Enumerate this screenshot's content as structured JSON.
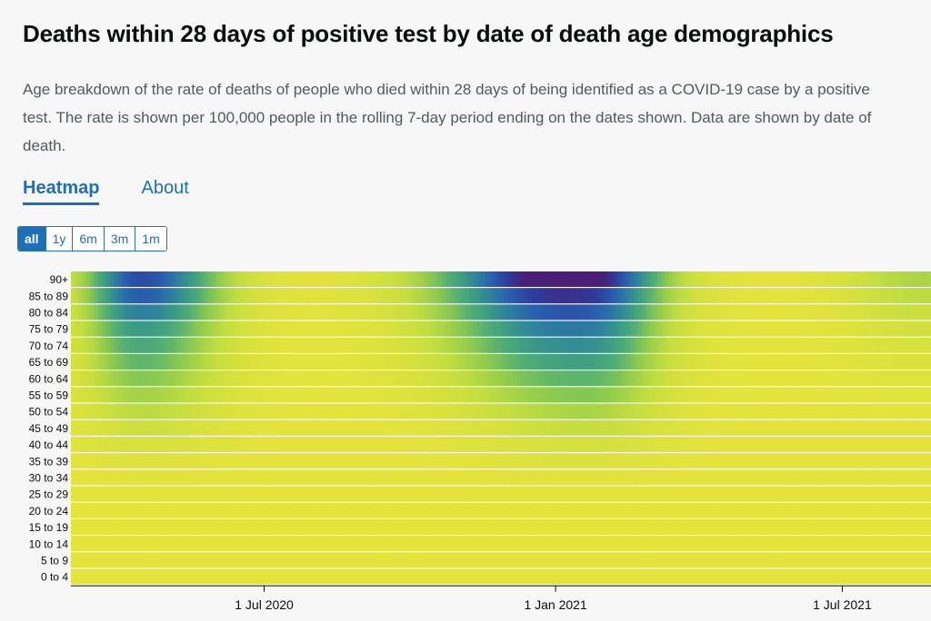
{
  "header": {
    "title": "Deaths within 28 days of positive test by date of death age demographics",
    "description": "Age breakdown of the rate of deaths of people who died within 28 days of being identified as a COVID-19 case by a positive test. The rate is shown per 100,000 people in the rolling 7-day period ending on the dates shown. Data are shown by date of death."
  },
  "tabs": [
    {
      "label": "Heatmap",
      "active": true
    },
    {
      "label": "About",
      "active": false
    }
  ],
  "range_buttons": [
    {
      "label": "all",
      "selected": true
    },
    {
      "label": "1y",
      "selected": false
    },
    {
      "label": "6m",
      "selected": false
    },
    {
      "label": "3m",
      "selected": false
    },
    {
      "label": "1m",
      "selected": false
    }
  ],
  "colors": {
    "accent": "#1d70b8",
    "scale": [
      "#e3e33c",
      "#c2dd40",
      "#8fcb4e",
      "#55b072",
      "#3a9a86",
      "#2e7ea0",
      "#2a5fae",
      "#2c3e9f",
      "#4a1f78"
    ]
  },
  "chart_data": {
    "type": "heatmap",
    "y_categories": [
      "90+",
      "85 to 89",
      "80 to 84",
      "75 to 79",
      "70 to 74",
      "65 to 69",
      "60 to 64",
      "55 to 59",
      "50 to 54",
      "45 to 49",
      "40 to 44",
      "35 to 39",
      "30 to 34",
      "25 to 29",
      "20 to 24",
      "15 to 19",
      "10 to 14",
      "5 to 9",
      "0 to 4"
    ],
    "x_range": [
      "2020-03-01",
      "2021-08-26"
    ],
    "x_ticks": [
      {
        "date": "2020-07-01",
        "label": "1 Jul 2020"
      },
      {
        "date": "2021-01-01",
        "label": "1 Jan 2021"
      },
      {
        "date": "2021-07-01",
        "label": "1 Jul 2021"
      }
    ],
    "wave_peaks": [
      {
        "date": "2020-04-14",
        "width_days": 22,
        "tail_days": 32,
        "intensity_by_age": [
          0.82,
          0.76,
          0.62,
          0.5,
          0.42,
          0.35,
          0.27,
          0.2,
          0.14,
          0.08,
          0.05,
          0.02,
          0.01,
          0.0,
          0.0,
          0.0,
          0.0,
          0.0,
          0.0
        ]
      },
      {
        "date": "2021-01-22",
        "width_days": 45,
        "tail_days": 30,
        "intensity_by_age": [
          1.0,
          0.84,
          0.72,
          0.6,
          0.52,
          0.44,
          0.34,
          0.26,
          0.18,
          0.11,
          0.06,
          0.03,
          0.01,
          0.0,
          0.0,
          0.0,
          0.0,
          0.0,
          0.0
        ]
      },
      {
        "date": "2020-12-01",
        "width_days": 40,
        "tail_days": 30,
        "intensity_by_age": [
          0.36,
          0.3,
          0.24,
          0.18,
          0.14,
          0.1,
          0.07,
          0.04,
          0.02,
          0.0,
          0.0,
          0.0,
          0.0,
          0.0,
          0.0,
          0.0,
          0.0,
          0.0,
          0.0
        ]
      },
      {
        "date": "2021-08-20",
        "width_days": 30,
        "tail_days": 20,
        "intensity_by_age": [
          0.18,
          0.14,
          0.1,
          0.07,
          0.05,
          0.03,
          0.02,
          0.01,
          0.0,
          0.0,
          0.0,
          0.0,
          0.0,
          0.0,
          0.0,
          0.0,
          0.0,
          0.0,
          0.0
        ]
      }
    ]
  }
}
